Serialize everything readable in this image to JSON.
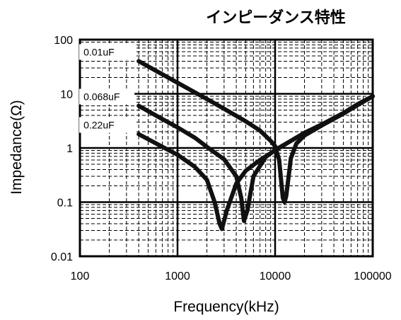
{
  "chart_data": {
    "type": "line",
    "title": "インピーダンス特性",
    "xlabel": "Frequency(kHz)",
    "ylabel": "Impedance(Ω)",
    "xscale": "log",
    "yscale": "log",
    "xlim": [
      100,
      100000
    ],
    "ylim": [
      0.01,
      100
    ],
    "x_ticks": [
      100,
      1000,
      10000,
      100000
    ],
    "x_tick_labels": [
      "100",
      "1000",
      "10000",
      "100000"
    ],
    "y_ticks": [
      0.01,
      0.1,
      1,
      10,
      100
    ],
    "y_tick_labels": [
      "0.01",
      "0.1",
      "1",
      "10",
      "100"
    ],
    "grid": true,
    "legend": "none",
    "line_color": "#111111",
    "series": [
      {
        "name": "0.01uF",
        "label_at": 400,
        "points": [
          [
            400,
            40
          ],
          [
            1000,
            16
          ],
          [
            2000,
            8
          ],
          [
            3000,
            5.3
          ],
          [
            5000,
            3.1
          ],
          [
            7000,
            2.1
          ],
          [
            9000,
            1.35
          ],
          [
            10000,
            1.08
          ],
          [
            11000,
            0.6
          ],
          [
            12000,
            0.12
          ],
          [
            12500,
            0.1
          ],
          [
            13000,
            0.13
          ],
          [
            14500,
            0.65
          ],
          [
            16500,
            1.2
          ],
          [
            20000,
            1.7
          ],
          [
            30000,
            2.6
          ],
          [
            50000,
            4.3
          ],
          [
            70000,
            6.2
          ],
          [
            100000,
            9
          ]
        ]
      },
      {
        "name": "0.068uF",
        "label_at": 400,
        "points": [
          [
            400,
            6
          ],
          [
            700,
            3.4
          ],
          [
            1000,
            2.4
          ],
          [
            1500,
            1.55
          ],
          [
            2000,
            1.05
          ],
          [
            3000,
            0.62
          ],
          [
            4000,
            0.3
          ],
          [
            4500,
            0.12
          ],
          [
            4800,
            0.045
          ],
          [
            5200,
            0.07
          ],
          [
            6000,
            0.3
          ],
          [
            8000,
            0.68
          ],
          [
            10000,
            0.92
          ],
          [
            15000,
            1.4
          ],
          [
            20000,
            1.9
          ],
          [
            30000,
            2.7
          ],
          [
            50000,
            4.4
          ],
          [
            70000,
            6.4
          ],
          [
            100000,
            9
          ]
        ]
      },
      {
        "name": "0.22uF",
        "label_at": 400,
        "points": [
          [
            400,
            1.8
          ],
          [
            700,
            1.05
          ],
          [
            1000,
            0.75
          ],
          [
            1500,
            0.45
          ],
          [
            2000,
            0.26
          ],
          [
            2400,
            0.1
          ],
          [
            2700,
            0.04
          ],
          [
            2850,
            0.032
          ],
          [
            3200,
            0.07
          ],
          [
            4000,
            0.22
          ],
          [
            5000,
            0.38
          ],
          [
            7000,
            0.6
          ],
          [
            10000,
            0.9
          ],
          [
            15000,
            1.4
          ],
          [
            20000,
            1.9
          ],
          [
            30000,
            2.7
          ],
          [
            50000,
            4.4
          ],
          [
            70000,
            6.4
          ],
          [
            100000,
            9
          ]
        ]
      }
    ]
  }
}
